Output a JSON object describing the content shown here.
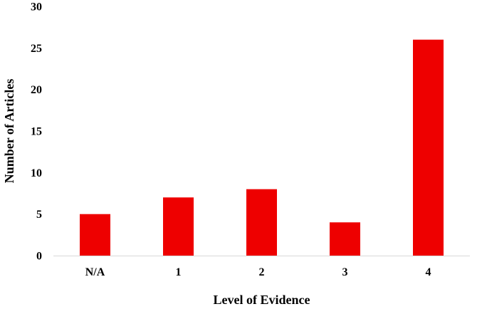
{
  "chart_data": {
    "type": "bar",
    "title": "",
    "xlabel": "Level of Evidence",
    "ylabel": "Number of Articles",
    "categories": [
      "N/A",
      "1",
      "2",
      "3",
      "4"
    ],
    "series": [
      {
        "values": [
          5,
          7,
          8,
          4,
          26
        ]
      }
    ],
    "ylim": [
      0,
      30
    ],
    "yticks": [
      0,
      5,
      10,
      15,
      20,
      25,
      30
    ],
    "grid": false,
    "legend": "none",
    "colors": {
      "bar": "#ee0000",
      "axis": "#d9d9d9"
    }
  }
}
